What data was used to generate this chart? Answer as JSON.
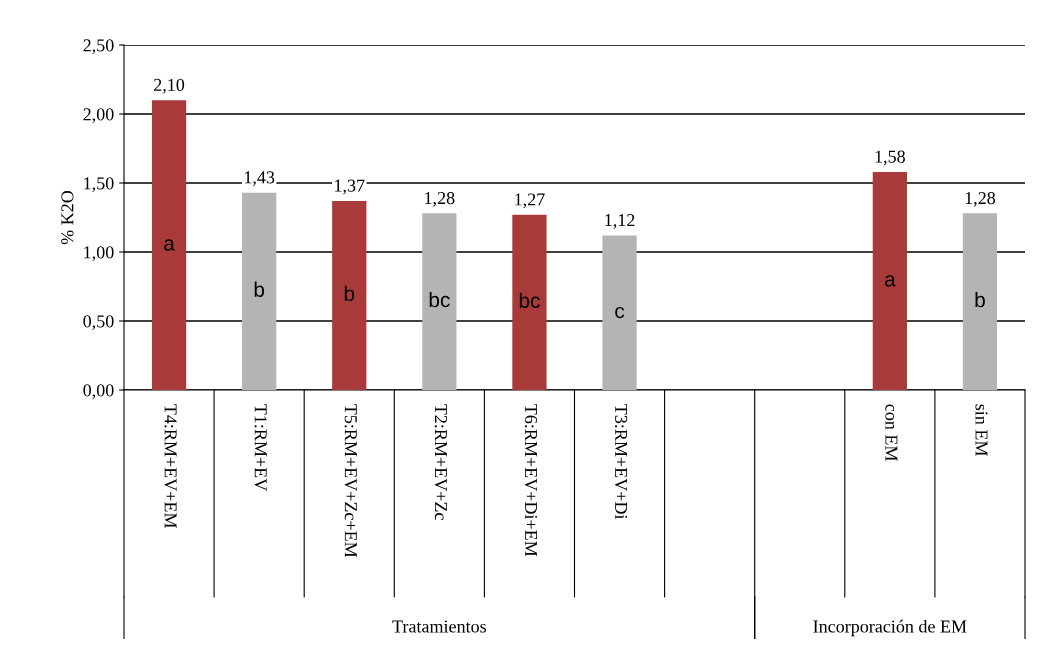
{
  "chart_data": {
    "type": "bar",
    "ylabel": "% K2O",
    "categories": [
      "T4:RM+EV+EM",
      "T1:RM+EV",
      "T5:RM+EV+Zc+EM",
      "T2:RM+EV+Zc",
      "T6:RM+EV+Di+EM",
      "T3:RM+EV+Di",
      null,
      null,
      "con EM",
      "sin EM"
    ],
    "values": [
      2.1,
      1.43,
      1.37,
      1.28,
      1.27,
      1.12,
      null,
      null,
      1.58,
      1.28
    ],
    "value_labels": [
      "2,10",
      "1,43",
      "1,37",
      "1,28",
      "1,27",
      "1,12",
      null,
      null,
      "1,58",
      "1,28"
    ],
    "colors": [
      "#a83a3a",
      "#b4b4b4",
      "#a83a3a",
      "#b4b4b4",
      "#a83a3a",
      "#b4b4b4",
      null,
      null,
      "#a83a3a",
      "#b4b4b4"
    ],
    "ylim": [
      0,
      2.5
    ],
    "yticks": [
      {
        "value": 0,
        "label": "0,00"
      },
      {
        "value": 0.5,
        "label": "0,50"
      },
      {
        "value": 1,
        "label": "1,00"
      },
      {
        "value": 1.5,
        "label": "1,50"
      },
      {
        "value": 2,
        "label": "2,00"
      },
      {
        "value": 2.5,
        "label": "2,50"
      }
    ],
    "grid": "y",
    "annotations": [
      "a",
      "b",
      "b",
      "bc",
      "bc",
      "c",
      "a",
      "b",
      "Tratamientos",
      "Incorporación de EM"
    ]
  }
}
